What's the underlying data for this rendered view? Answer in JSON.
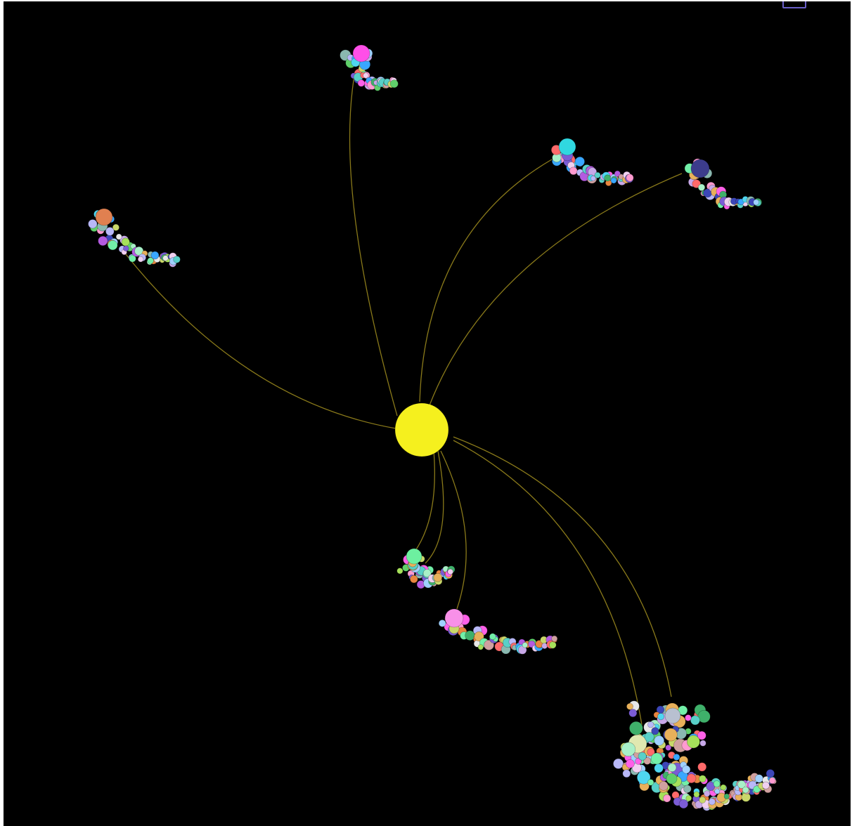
{
  "graph": {
    "background": "#000000",
    "link_color": "#8a7a1a",
    "root": {
      "name": "",
      "color": "#f5f01e"
    },
    "palette": [
      "#e8e8e8",
      "#b8b8f8",
      "#58d0c8",
      "#4fd6f0",
      "#39a7ff",
      "#3c46b8",
      "#7b5cd6",
      "#b45be0",
      "#ff60e8",
      "#ff9ad0",
      "#ff6a6a",
      "#e9853f",
      "#e8b05a",
      "#c9d86a",
      "#a6e05a",
      "#5fd06a",
      "#3fb06a",
      "#72f0a8",
      "#a8f0c8",
      "#8ab8b0",
      "#d0a0a0",
      "#f0d0f0",
      "#c8a8e8",
      "#9fd0ff"
    ],
    "clusters": [
      {
        "id": "top",
        "head_color": "#ff4fe8",
        "count": 40,
        "links": 1
      },
      {
        "id": "upper-right-a",
        "head_color": "#30d8e0",
        "count": 48,
        "links": 1
      },
      {
        "id": "upper-right-b",
        "head_color": "#3c3c8c",
        "count": 40,
        "links": 1
      },
      {
        "id": "left",
        "head_color": "#e08050",
        "count": 46,
        "links": 1
      },
      {
        "id": "lower-mid-a",
        "head_color": "#6df0a0",
        "count": 44,
        "links": 2
      },
      {
        "id": "lower-mid-b",
        "head_color": "#f890e8",
        "count": 52,
        "links": 1
      },
      {
        "id": "bottom-right",
        "head_color": "#e0e8b0",
        "count": 150,
        "links": 2
      }
    ]
  },
  "controls": {
    "corner_button_icon": "square-outline-icon"
  }
}
